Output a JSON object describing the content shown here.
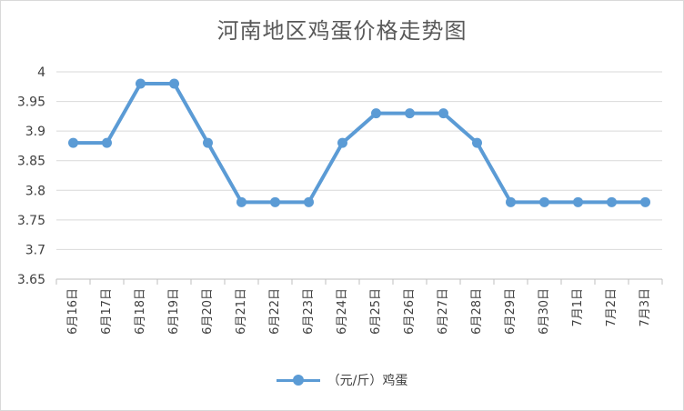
{
  "chart_data": {
    "type": "line",
    "title": "河南地区鸡蛋价格走势图",
    "categories": [
      "6月16日",
      "6月17日",
      "6月18日",
      "6月19日",
      "6月20日",
      "6月21日",
      "6月22日",
      "6月23日",
      "6月24日",
      "6月25日",
      "6月26日",
      "6月27日",
      "6月28日",
      "6月29日",
      "6月30日",
      "7月1日",
      "7月2日",
      "7月3日"
    ],
    "series": [
      {
        "name": "（元/斤）鸡蛋",
        "values": [
          3.88,
          3.88,
          3.98,
          3.98,
          3.88,
          3.78,
          3.78,
          3.78,
          3.88,
          3.93,
          3.93,
          3.93,
          3.88,
          3.78,
          3.78,
          3.78,
          3.78,
          3.78
        ]
      }
    ],
    "ylim": [
      3.65,
      4
    ],
    "yticks": [
      "3.65",
      "3.7",
      "3.75",
      "3.8",
      "3.85",
      "3.9",
      "3.95",
      "4"
    ],
    "xlabel": "",
    "ylabel": "",
    "grid": true,
    "legend_position": "bottom",
    "colors": {
      "line": "#5b9bd5",
      "grid": "#d9d9d9",
      "text": "#404040",
      "title": "#595959"
    }
  }
}
